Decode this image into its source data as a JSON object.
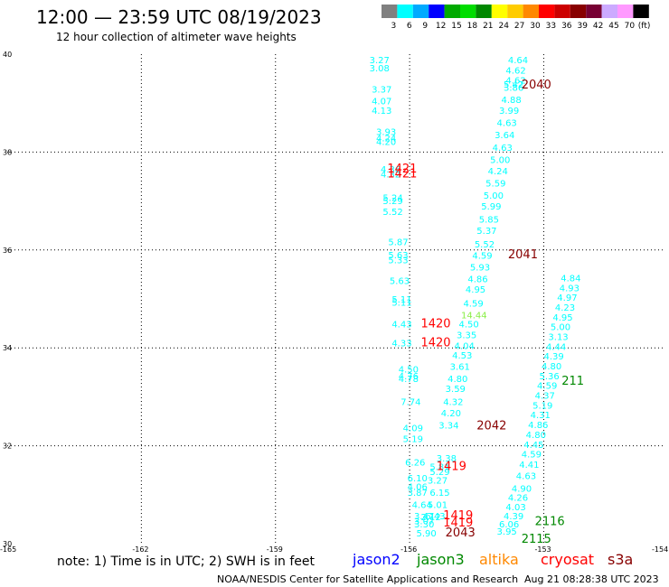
{
  "header": {
    "title": "12:00 — 23:59 UTC 08/19/2023",
    "subtitle": "12 hour collection of altimeter wave heights"
  },
  "legend_scale": {
    "colors": [
      "#808080",
      "#00ffff",
      "#00aaff",
      "#0000ff",
      "#00aa00",
      "#00dd00",
      "#008800",
      "#ffff00",
      "#ffcc00",
      "#ff8800",
      "#ff0000",
      "#cc0000",
      "#880000",
      "#770033",
      "#ccaaff",
      "#ff99ff",
      "#000000"
    ],
    "labels": [
      "3",
      "6",
      "9",
      "12",
      "15",
      "18",
      "21",
      "24",
      "27",
      "30",
      "33",
      "36",
      "39",
      "42",
      "45",
      "70"
    ],
    "unit": "(ft)"
  },
  "footer": {
    "note": "note: 1) Time is in UTC; 2) SWH is in feet",
    "satellites": [
      {
        "name": "jason2",
        "color": "#0000ff"
      },
      {
        "name": "jason3",
        "color": "#008800"
      },
      {
        "name": "altika",
        "color": "#ff8800"
      },
      {
        "name": "cryosat",
        "color": "#ff0000"
      },
      {
        "name": "s3a",
        "color": "#880000"
      }
    ],
    "credit": "NOAA/NESDIS Center for Satellite Applications and Research",
    "timestamp": "Aug 21 08:28:38 UTC 2023"
  },
  "chart_data": {
    "type": "scatter",
    "xlim": [
      -165,
      -154
    ],
    "ylim": [
      30,
      40
    ],
    "x_ticks": [
      "-165",
      "-162",
      "-159",
      "-156",
      "-153",
      "-154"
    ],
    "y_ticks": [
      "30",
      "32",
      "34",
      "36",
      "38",
      "40"
    ],
    "grid": true,
    "swh_points": [
      {
        "lon": -156.9,
        "lat": 39.82,
        "label": "3.27",
        "color": "#00ffff"
      },
      {
        "lon": -156.9,
        "lat": 39.65,
        "label": "3.08",
        "color": "#00ffff"
      },
      {
        "lon": -156.85,
        "lat": 39.22,
        "label": "3.37",
        "color": "#00ffff"
      },
      {
        "lon": -156.85,
        "lat": 38.98,
        "label": "4.07",
        "color": "#00ffff"
      },
      {
        "lon": -156.85,
        "lat": 38.78,
        "label": "4.13",
        "color": "#00ffff"
      },
      {
        "lon": -156.75,
        "lat": 38.35,
        "label": "3.93",
        "color": "#00ffff"
      },
      {
        "lon": -156.75,
        "lat": 38.22,
        "label": "4.24",
        "color": "#00ffff"
      },
      {
        "lon": -156.75,
        "lat": 38.15,
        "label": "4.20",
        "color": "#00ffff"
      },
      {
        "lon": -156.65,
        "lat": 37.58,
        "label": "4.36",
        "color": "#00ffff"
      },
      {
        "lon": -156.65,
        "lat": 37.48,
        "label": "4.32",
        "color": "#00ffff"
      },
      {
        "lon": -156.6,
        "lat": 37.0,
        "label": "5.24",
        "color": "#00ffff"
      },
      {
        "lon": -156.6,
        "lat": 36.94,
        "label": "5.29",
        "color": "#00ffff"
      },
      {
        "lon": -156.6,
        "lat": 36.72,
        "label": "5.52",
        "color": "#00ffff"
      },
      {
        "lon": -156.48,
        "lat": 36.1,
        "label": "5.87",
        "color": "#00ffff"
      },
      {
        "lon": -156.48,
        "lat": 35.83,
        "label": "5.63",
        "color": "#00ffff"
      },
      {
        "lon": -156.48,
        "lat": 35.73,
        "label": "5.33",
        "color": "#00ffff"
      },
      {
        "lon": -156.45,
        "lat": 35.3,
        "label": "5.63",
        "color": "#00ffff"
      },
      {
        "lon": -156.4,
        "lat": 34.93,
        "label": "5.11",
        "color": "#00ffff"
      },
      {
        "lon": -156.4,
        "lat": 34.86,
        "label": "5.11",
        "color": "#00ffff"
      },
      {
        "lon": -156.4,
        "lat": 34.42,
        "label": "4.43",
        "color": "#00ffff"
      },
      {
        "lon": -156.4,
        "lat": 34.03,
        "label": "4.33",
        "color": "#00ffff"
      },
      {
        "lon": -156.25,
        "lat": 33.5,
        "label": "4.50",
        "color": "#00ffff"
      },
      {
        "lon": -156.25,
        "lat": 33.36,
        "label": "4.76",
        "color": "#00ffff"
      },
      {
        "lon": -156.25,
        "lat": 33.3,
        "label": "4.78",
        "color": "#00ffff"
      },
      {
        "lon": -156.2,
        "lat": 32.83,
        "label": "7.74",
        "color": "#00ffff"
      },
      {
        "lon": -156.15,
        "lat": 32.3,
        "label": "4.09",
        "color": "#00ffff"
      },
      {
        "lon": -156.15,
        "lat": 32.08,
        "label": "5.19",
        "color": "#00ffff"
      },
      {
        "lon": -156.1,
        "lat": 31.6,
        "label": "6.26",
        "color": "#00ffff"
      },
      {
        "lon": -156.05,
        "lat": 31.27,
        "label": "6.10",
        "color": "#00ffff"
      },
      {
        "lon": -156.05,
        "lat": 31.1,
        "label": "4.06",
        "color": "#00ffff"
      },
      {
        "lon": -156.05,
        "lat": 30.98,
        "label": "3.87",
        "color": "#00ffff"
      },
      {
        "lon": -155.95,
        "lat": 30.73,
        "label": "4.64",
        "color": "#00ffff"
      },
      {
        "lon": -155.9,
        "lat": 30.5,
        "label": "3.47",
        "color": "#00ffff"
      },
      {
        "lon": -155.9,
        "lat": 30.4,
        "label": "3.07",
        "color": "#00ffff"
      },
      {
        "lon": -155.9,
        "lat": 30.33,
        "label": "3.30",
        "color": "#00ffff"
      },
      {
        "lon": -155.85,
        "lat": 30.15,
        "label": "5.90",
        "color": "#00ffff"
      },
      {
        "lon": -155.75,
        "lat": 30.48,
        "label": "2.12",
        "color": "#00ffff"
      },
      {
        "lon": -155.65,
        "lat": 30.5,
        "label": "6.43",
        "color": "#00ffff"
      },
      {
        "lon": -155.6,
        "lat": 30.73,
        "label": "5.01",
        "color": "#00ffff"
      },
      {
        "lon": -155.55,
        "lat": 30.98,
        "label": "6.15",
        "color": "#00ffff"
      },
      {
        "lon": -155.6,
        "lat": 31.23,
        "label": "3.27",
        "color": "#00ffff"
      },
      {
        "lon": -155.55,
        "lat": 31.5,
        "label": "5.81",
        "color": "#00ffff"
      },
      {
        "lon": -155.55,
        "lat": 31.4,
        "label": "5.29",
        "color": "#00ffff"
      },
      {
        "lon": -155.4,
        "lat": 31.68,
        "label": "3.38",
        "color": "#00ffff"
      },
      {
        "lon": -155.35,
        "lat": 32.35,
        "label": "3.34",
        "color": "#00ffff"
      },
      {
        "lon": -155.3,
        "lat": 32.6,
        "label": "4.20",
        "color": "#00ffff"
      },
      {
        "lon": -155.25,
        "lat": 32.83,
        "label": "4.32",
        "color": "#00ffff"
      },
      {
        "lon": -155.2,
        "lat": 33.1,
        "label": "3.59",
        "color": "#00ffff"
      },
      {
        "lon": -155.15,
        "lat": 33.3,
        "label": "4.80",
        "color": "#00ffff"
      },
      {
        "lon": -155.1,
        "lat": 33.55,
        "label": "3.61",
        "color": "#00ffff"
      },
      {
        "lon": -155.05,
        "lat": 33.78,
        "label": "4.53",
        "color": "#00ffff"
      },
      {
        "lon": -155.0,
        "lat": 33.98,
        "label": "4.04",
        "color": "#00ffff"
      },
      {
        "lon": -154.95,
        "lat": 34.2,
        "label": "3.35",
        "color": "#00ffff"
      },
      {
        "lon": -154.9,
        "lat": 34.42,
        "label": "4.50",
        "color": "#00ffff"
      },
      {
        "lon": -154.85,
        "lat": 34.6,
        "label": "14.44",
        "color": "#88ee44"
      },
      {
        "lon": -154.8,
        "lat": 34.84,
        "label": "4.59",
        "color": "#00ffff"
      },
      {
        "lon": -154.75,
        "lat": 35.13,
        "label": "4.95",
        "color": "#00ffff"
      },
      {
        "lon": -154.7,
        "lat": 35.34,
        "label": "4.86",
        "color": "#00ffff"
      },
      {
        "lon": -154.65,
        "lat": 35.58,
        "label": "5.93",
        "color": "#00ffff"
      },
      {
        "lon": -154.6,
        "lat": 35.82,
        "label": "4.59",
        "color": "#00ffff"
      },
      {
        "lon": -154.55,
        "lat": 36.05,
        "label": "5.52",
        "color": "#00ffff"
      },
      {
        "lon": -154.5,
        "lat": 36.33,
        "label": "5.37",
        "color": "#00ffff"
      },
      {
        "lon": -154.45,
        "lat": 36.56,
        "label": "5.85",
        "color": "#00ffff"
      },
      {
        "lon": -154.4,
        "lat": 36.83,
        "label": "5.99",
        "color": "#00ffff"
      },
      {
        "lon": -154.35,
        "lat": 37.05,
        "label": "5.00",
        "color": "#00ffff"
      },
      {
        "lon": -154.3,
        "lat": 37.3,
        "label": "5.59",
        "color": "#00ffff"
      },
      {
        "lon": -154.25,
        "lat": 37.55,
        "label": "4.24",
        "color": "#00ffff"
      },
      {
        "lon": -154.2,
        "lat": 37.78,
        "label": "5.00",
        "color": "#00ffff"
      },
      {
        "lon": -154.15,
        "lat": 38.03,
        "label": "4.63",
        "color": "#00ffff"
      },
      {
        "lon": -154.1,
        "lat": 38.28,
        "label": "3.64",
        "color": "#00ffff"
      },
      {
        "lon": -154.05,
        "lat": 38.53,
        "label": "4.63",
        "color": "#00ffff"
      },
      {
        "lon": -154.0,
        "lat": 38.78,
        "label": "3.99",
        "color": "#00ffff"
      },
      {
        "lon": -153.95,
        "lat": 39.0,
        "label": "4.88",
        "color": "#00ffff"
      },
      {
        "lon": -153.9,
        "lat": 39.25,
        "label": "3.86",
        "color": "#00ffff"
      },
      {
        "lon": -153.9,
        "lat": 39.32,
        "label": "5.42",
        "color": "#00ffff"
      },
      {
        "lon": -153.85,
        "lat": 39.6,
        "label": "4.62",
        "color": "#00ffff"
      },
      {
        "lon": -153.8,
        "lat": 39.82,
        "label": "4.64",
        "color": "#00ffff"
      },
      {
        "lon": -153.85,
        "lat": 39.4,
        "label": "4.62",
        "color": "#00ffff"
      },
      {
        "lon": -154.05,
        "lat": 30.18,
        "label": "3.95",
        "color": "#00ffff"
      },
      {
        "lon": -154.0,
        "lat": 30.33,
        "label": "6.06",
        "color": "#00ffff"
      },
      {
        "lon": -153.9,
        "lat": 30.5,
        "label": "4.39",
        "color": "#00ffff"
      },
      {
        "lon": -153.85,
        "lat": 30.68,
        "label": "4.03",
        "color": "#00ffff"
      },
      {
        "lon": -153.8,
        "lat": 30.88,
        "label": "4.26",
        "color": "#00ffff"
      },
      {
        "lon": -153.72,
        "lat": 31.06,
        "label": "4.90",
        "color": "#00ffff"
      },
      {
        "lon": -153.62,
        "lat": 31.32,
        "label": "4.63",
        "color": "#00ffff"
      },
      {
        "lon": -153.55,
        "lat": 31.55,
        "label": "4.41",
        "color": "#00ffff"
      },
      {
        "lon": -153.5,
        "lat": 31.76,
        "label": "4.59",
        "color": "#00ffff"
      },
      {
        "lon": -153.45,
        "lat": 31.96,
        "label": "4.45",
        "color": "#00ffff"
      },
      {
        "lon": -153.4,
        "lat": 32.16,
        "label": "4.80",
        "color": "#00ffff"
      },
      {
        "lon": -153.35,
        "lat": 32.36,
        "label": "4.86",
        "color": "#00ffff"
      },
      {
        "lon": -153.3,
        "lat": 32.56,
        "label": "4.31",
        "color": "#00ffff"
      },
      {
        "lon": -153.25,
        "lat": 32.76,
        "label": "5.19",
        "color": "#00ffff"
      },
      {
        "lon": -153.2,
        "lat": 32.96,
        "label": "4.37",
        "color": "#00ffff"
      },
      {
        "lon": -153.15,
        "lat": 33.16,
        "label": "4.59",
        "color": "#00ffff"
      },
      {
        "lon": -153.1,
        "lat": 33.36,
        "label": "5.36",
        "color": "#00ffff"
      },
      {
        "lon": -153.05,
        "lat": 33.56,
        "label": "4.80",
        "color": "#00ffff"
      },
      {
        "lon": -153.0,
        "lat": 33.76,
        "label": "4.39",
        "color": "#00ffff"
      },
      {
        "lon": -152.95,
        "lat": 33.96,
        "label": "4.44",
        "color": "#00ffff"
      },
      {
        "lon": -152.9,
        "lat": 34.16,
        "label": "3.13",
        "color": "#00ffff"
      },
      {
        "lon": -152.85,
        "lat": 34.36,
        "label": "5.00",
        "color": "#00ffff"
      },
      {
        "lon": -152.8,
        "lat": 34.56,
        "label": "4.95",
        "color": "#00ffff"
      },
      {
        "lon": -152.75,
        "lat": 34.76,
        "label": "4.23",
        "color": "#00ffff"
      },
      {
        "lon": -152.7,
        "lat": 34.96,
        "label": "4.97",
        "color": "#00ffff"
      },
      {
        "lon": -152.65,
        "lat": 35.16,
        "label": "4.93",
        "color": "#00ffff"
      },
      {
        "lon": -152.62,
        "lat": 35.36,
        "label": "4.84",
        "color": "#00ffff"
      }
    ],
    "time_labels": [
      {
        "lon": -156.5,
        "lat": 37.58,
        "label": "1421",
        "color": "#ff0000"
      },
      {
        "lon": -156.5,
        "lat": 37.48,
        "label": "1421",
        "color": "#ff0000"
      },
      {
        "lon": -155.75,
        "lat": 34.42,
        "label": "1420",
        "color": "#ff0000"
      },
      {
        "lon": -155.75,
        "lat": 34.03,
        "label": "1420",
        "color": "#ff0000"
      },
      {
        "lon": -155.4,
        "lat": 31.5,
        "label": "1419",
        "color": "#ff0000"
      },
      {
        "lon": -155.25,
        "lat": 30.5,
        "label": "1419",
        "color": "#ff0000"
      },
      {
        "lon": -155.25,
        "lat": 30.35,
        "label": "1419",
        "color": "#ff0000"
      },
      {
        "lon": -153.5,
        "lat": 39.3,
        "label": "2040",
        "color": "#880000"
      },
      {
        "lon": -153.8,
        "lat": 35.83,
        "label": "2041",
        "color": "#880000"
      },
      {
        "lon": -154.5,
        "lat": 32.33,
        "label": "2042",
        "color": "#880000"
      },
      {
        "lon": -155.2,
        "lat": 30.15,
        "label": "2043",
        "color": "#880000"
      },
      {
        "lon": -153.2,
        "lat": 30.38,
        "label": "2116",
        "color": "#008800"
      },
      {
        "lon": -153.5,
        "lat": 30.02,
        "label": "2115",
        "color": "#008800"
      },
      {
        "lon": -152.6,
        "lat": 33.25,
        "label": "211",
        "color": "#008800"
      }
    ]
  }
}
